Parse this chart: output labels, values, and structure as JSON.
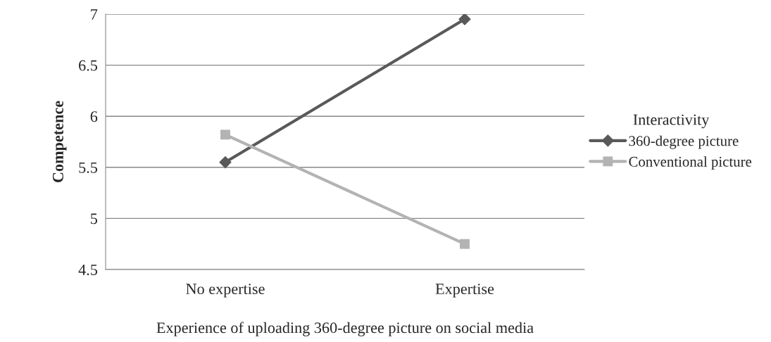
{
  "chart_data": {
    "type": "line",
    "xlabel": "Experience of uploading 360-degree picture on social media",
    "ylabel": "Competence",
    "legend_title": "Interactivity",
    "categories": [
      "No expertise",
      "Expertise"
    ],
    "series": [
      {
        "name": "360-degree picture",
        "color": "#595959",
        "marker": "diamond",
        "values": [
          5.55,
          6.95
        ]
      },
      {
        "name": "Conventional picture",
        "color": "#b3b3b3",
        "marker": "square",
        "values": [
          5.82,
          4.75
        ]
      }
    ],
    "ylim": [
      4.5,
      7
    ],
    "yticks": [
      4.5,
      5,
      5.5,
      6,
      6.5,
      7
    ],
    "grid": "y",
    "legend": "right"
  }
}
